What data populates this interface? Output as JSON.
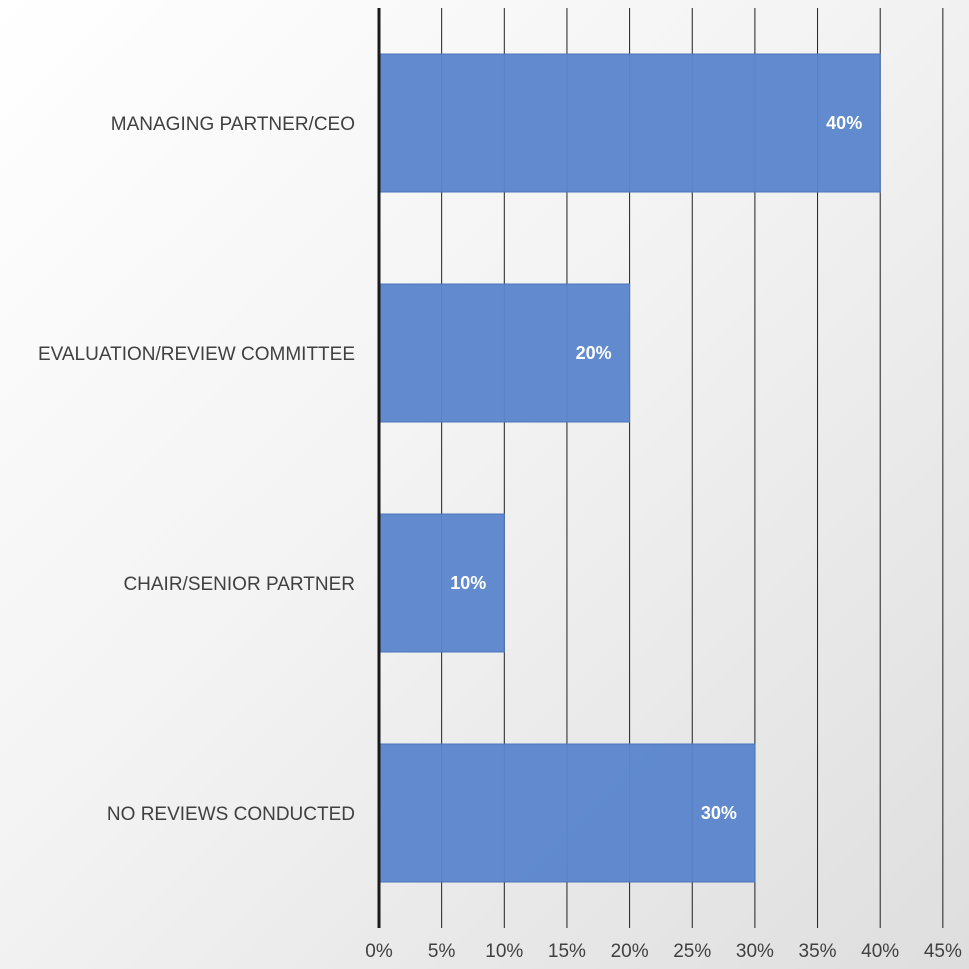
{
  "chart_data": {
    "type": "bar",
    "orientation": "horizontal",
    "categories": [
      "MANAGING PARTNER/CEO",
      "EVALUATION/REVIEW COMMITTEE",
      "CHAIR/SENIOR PARTNER",
      "NO REVIEWS CONDUCTED"
    ],
    "values": [
      40,
      20,
      10,
      30
    ],
    "data_labels": [
      "40%",
      "20%",
      "10%",
      "30%"
    ],
    "x_ticks": [
      "0%",
      "5%",
      "10%",
      "15%",
      "20%",
      "25%",
      "30%",
      "35%",
      "40%",
      "45%"
    ],
    "xlim": [
      0,
      45
    ],
    "grid": "vertical",
    "legend": "none",
    "title": "",
    "xlabel": "",
    "ylabel": ""
  },
  "colors": {
    "bar_fill": "#5b86cc",
    "bar_edge": "#4a74b8",
    "gridline": "#202020",
    "axis_line": "#1a1a1a",
    "text": "#404040",
    "data_label": "#ffffff"
  }
}
